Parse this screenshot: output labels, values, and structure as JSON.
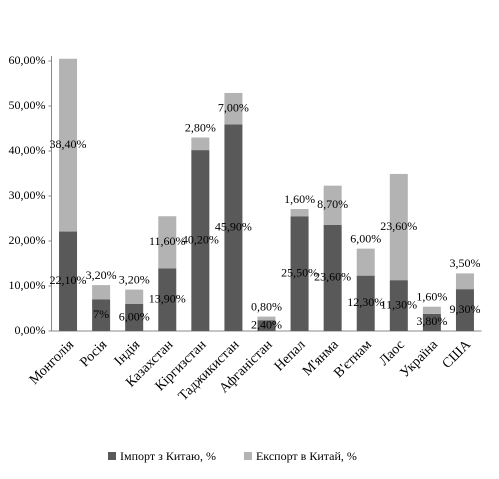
{
  "chart_data": {
    "type": "stacked_bar",
    "categories": [
      "Монголія",
      "Росія",
      "Індія",
      "Казахстан",
      "Кіргизстан",
      "Таджикистан",
      "Афганістан",
      "Непал",
      "М'янма",
      "В'єтнам",
      "Лаос",
      "Україна",
      "США"
    ],
    "series": [
      {
        "name": "Імпорт з Китаю, %",
        "color": "#595959",
        "values": [
          22.1,
          7,
          6.0,
          13.9,
          40.2,
          45.9,
          2.4,
          25.5,
          23.6,
          12.3,
          11.3,
          3.8,
          9.3
        ],
        "value_labels": [
          "22,10%",
          "7%",
          "6,00%",
          "13,90%",
          "40,20%",
          "45,90%",
          "2,40%",
          "25,50%",
          "23,60%",
          "12,30%",
          "11,30%",
          "3,80%",
          "9,30%"
        ]
      },
      {
        "name": "Експорт в Китай, %",
        "color": "#b3b3b3",
        "values": [
          38.4,
          3.2,
          3.2,
          11.6,
          2.8,
          7.0,
          0.8,
          1.6,
          8.7,
          6.0,
          23.6,
          1.6,
          3.5
        ],
        "value_labels": [
          "38,40%",
          "3,20%",
          "3,20%",
          "11,60%",
          "2,80%",
          "7,00%",
          "0,80%",
          "1,60%",
          "8,70%",
          "6,00%",
          "23,60%",
          "1,60%",
          "3,50%"
        ]
      }
    ],
    "ylim": [
      0,
      60
    ],
    "yticks": [
      {
        "value": 0,
        "label": "0,00%"
      },
      {
        "value": 10,
        "label": "10,00%"
      },
      {
        "value": 20,
        "label": "20,00%"
      },
      {
        "value": 30,
        "label": "30,00%"
      },
      {
        "value": 40,
        "label": "40,00%"
      },
      {
        "value": 50,
        "label": "50,00%"
      },
      {
        "value": 60,
        "label": "60,00%"
      }
    ],
    "legend": "bottom"
  }
}
